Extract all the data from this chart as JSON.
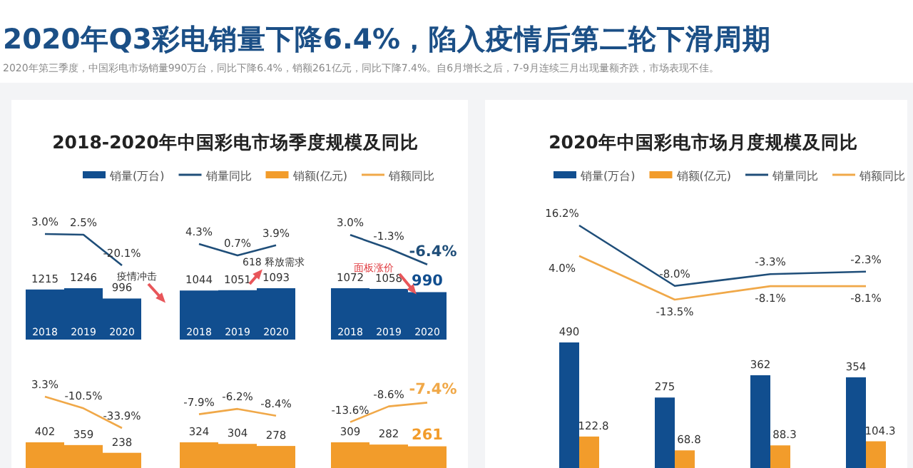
{
  "chart_data": [
    {
      "type": "other",
      "title": "2020年Q3彩电销量下降6.4%，陷入疫情后第二轮下滑周期",
      "subtitle": "2020年第三季度，中国彩电市场销量990万台，同比下降6.4%，销额261亿元，同比下降7.4%。自6月增长之后，7-9月连续三月出现量额齐跌，市场表现不佳。",
      "annotations": [
        "2018-2020年中国彩电市场季度规模及同比",
        "2020年中国彩电市场月度规模及同比"
      ]
    },
    {
      "type": "bar",
      "categories": [
        "2018",
        "2019",
        "2020"
      ],
      "legend": "top",
      "annotations": [
        "疫情冲击"
      ],
      "series": [
        {
          "name": "销量(万台)",
          "color": "#114e8f",
          "values": [
            1215,
            1246,
            996
          ],
          "value_labels": [
            "1215",
            "1246",
            "996"
          ]
        }
      ]
    },
    {
      "type": "line",
      "categories": [
        null,
        null,
        null
      ],
      "legend": "top",
      "series": [
        {
          "name": "销量同比",
          "color": "#1f4e79",
          "values": [
            3.0,
            2.5,
            -20.1
          ],
          "value_labels": [
            "3.0%",
            "2.5%",
            "-20.1%"
          ]
        }
      ]
    },
    {
      "type": "bar",
      "categories": [
        "2018",
        "2019",
        "2020"
      ],
      "annotations": [
        "618 释放需求"
      ],
      "series": [
        {
          "color": "#114e8f",
          "values": [
            1044,
            1051,
            1093
          ],
          "value_labels": [
            "1044",
            "1051",
            "1093"
          ]
        }
      ]
    },
    {
      "type": "line",
      "categories": [
        null,
        null,
        null
      ],
      "series": [
        {
          "color": "#1f4e79",
          "values": [
            4.3,
            0.7,
            3.9
          ],
          "value_labels": [
            "4.3%",
            "0.7%",
            "3.9%"
          ]
        }
      ]
    },
    {
      "type": "bar",
      "categories": [
        "2018",
        "2019",
        "2020"
      ],
      "annotations": [
        "面板涨价"
      ],
      "series": [
        {
          "color": "#114e8f",
          "values": [
            1072,
            1058,
            990
          ],
          "value_labels": [
            "1072",
            "1058",
            "990"
          ]
        }
      ]
    },
    {
      "type": "line",
      "categories": [
        null,
        null,
        null
      ],
      "series": [
        {
          "color": "#1f4e79",
          "values": [
            3.0,
            -1.3,
            -6.4
          ],
          "value_labels": [
            "3.0%",
            "-1.3%",
            "-6.4%"
          ]
        }
      ]
    },
    {
      "type": "bar",
      "categories": [
        null,
        null,
        null
      ],
      "legend": "top",
      "series": [
        {
          "name": "销额(亿元)",
          "color": "#f29c2b",
          "values": [
            402,
            359,
            238
          ],
          "value_labels": [
            "402",
            "359",
            "238"
          ]
        }
      ]
    },
    {
      "type": "line",
      "categories": [
        null,
        null,
        null
      ],
      "legend": "top",
      "series": [
        {
          "name": "销额同比",
          "color": "#f0a848",
          "values": [
            3.3,
            -10.5,
            -33.9
          ],
          "value_labels": [
            "3.3%",
            "-10.5%",
            "-33.9%"
          ]
        }
      ]
    },
    {
      "type": "bar",
      "categories": [
        null,
        null,
        null
      ],
      "series": [
        {
          "color": "#f29c2b",
          "values": [
            324,
            304,
            278
          ],
          "value_labels": [
            "324",
            "304",
            "278"
          ]
        }
      ]
    },
    {
      "type": "line",
      "categories": [
        null,
        null,
        null
      ],
      "series": [
        {
          "color": "#f0a848",
          "values": [
            -7.9,
            -6.2,
            -8.4
          ],
          "value_labels": [
            "-7.9%",
            "-6.2%",
            "-8.4%"
          ]
        }
      ]
    },
    {
      "type": "bar",
      "categories": [
        null,
        null,
        null
      ],
      "series": [
        {
          "color": "#f29c2b",
          "values": [
            309,
            282,
            261
          ],
          "value_labels": [
            "309",
            "282",
            "261"
          ]
        }
      ]
    },
    {
      "type": "line",
      "categories": [
        null,
        null,
        null
      ],
      "series": [
        {
          "color": "#f0a848",
          "values": [
            -13.6,
            -8.6,
            -7.4
          ],
          "value_labels": [
            "-13.6%",
            "-8.6%",
            "-7.4%"
          ]
        }
      ]
    },
    {
      "type": "bar",
      "categories": [
        null,
        null,
        null,
        null
      ],
      "legend": "top",
      "series": [
        {
          "name": "销量(万台)",
          "color": "#114e8f",
          "values": [
            490,
            275,
            362,
            354
          ],
          "value_labels": [
            "490",
            "275",
            "362",
            "354"
          ]
        },
        {
          "name": "销额(亿元)",
          "color": "#f29c2b",
          "values": [
            122.8,
            68.8,
            88.3,
            104.3
          ],
          "value_labels": [
            "122.8",
            "68.8",
            "88.3",
            "104.3"
          ]
        }
      ]
    },
    {
      "type": "line",
      "categories": [
        null,
        null,
        null,
        null
      ],
      "legend": "top",
      "series": [
        {
          "name": "销量同比",
          "color": "#1f4e79",
          "values": [
            16.2,
            -8.0,
            -3.3,
            -2.3
          ],
          "value_labels": [
            "16.2%",
            "-8.0%",
            "-3.3%",
            "-2.3%"
          ]
        },
        {
          "name": "销额同比",
          "color": "#f0a848",
          "values": [
            4.0,
            -13.5,
            -8.1,
            -8.1
          ],
          "value_labels": [
            "4.0%",
            "-13.5%",
            "-8.1%",
            "-8.1%"
          ]
        }
      ]
    }
  ]
}
